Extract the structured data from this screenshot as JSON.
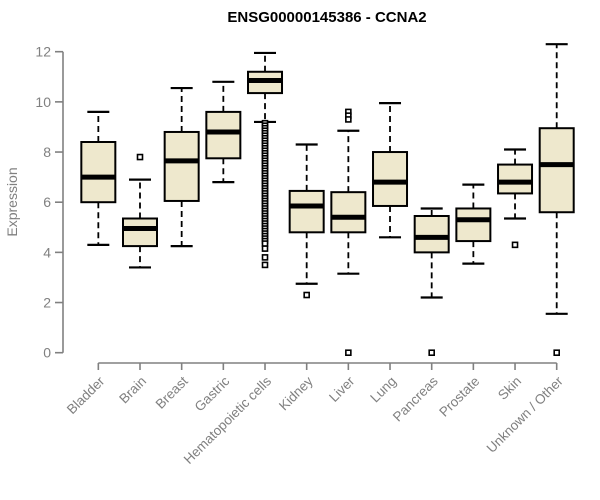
{
  "chart_data": {
    "type": "boxplot",
    "title": "ENSG00000145386 - CCNA2",
    "ylabel": "Expression",
    "xlabel": "",
    "ylim": [
      0,
      12
    ],
    "yticks": [
      "0",
      "2",
      "4",
      "6",
      "8",
      "10",
      "12"
    ],
    "grid": false,
    "legend": "none",
    "categories": [
      "Bladder",
      "Brain",
      "Breast",
      "Gastric",
      "Hematopoietic cells",
      "Kidney",
      "Liver",
      "Lung",
      "Pancreas",
      "Prostate",
      "Skin",
      "Unknown / Other"
    ],
    "boxes": [
      {
        "name": "Bladder",
        "low": 4.3,
        "q1": 6.0,
        "median": 7.0,
        "q3": 8.4,
        "high": 9.6,
        "outliers": []
      },
      {
        "name": "Brain",
        "low": 3.4,
        "q1": 4.25,
        "median": 4.95,
        "q3": 5.35,
        "high": 6.9,
        "outliers": [
          7.8
        ]
      },
      {
        "name": "Breast",
        "low": 4.25,
        "q1": 6.05,
        "median": 7.65,
        "q3": 8.8,
        "high": 10.55,
        "outliers": []
      },
      {
        "name": "Gastric",
        "low": 6.8,
        "q1": 7.75,
        "median": 8.8,
        "q3": 9.6,
        "high": 10.8,
        "outliers": []
      },
      {
        "name": "Hematopoietic cells",
        "low": 9.2,
        "q1": 10.35,
        "median": 10.85,
        "q3": 11.2,
        "high": 11.95,
        "outliers": [
          9.15,
          9.05,
          8.95,
          8.85,
          8.75,
          8.65,
          8.55,
          8.45,
          8.35,
          8.25,
          8.15,
          8.05,
          7.95,
          7.85,
          7.75,
          7.65,
          7.55,
          7.45,
          7.35,
          7.25,
          7.15,
          7.05,
          6.95,
          6.85,
          6.75,
          6.65,
          6.55,
          6.45,
          6.35,
          6.25,
          6.15,
          6.05,
          5.95,
          5.85,
          5.75,
          5.65,
          5.55,
          5.45,
          5.35,
          5.25,
          5.15,
          5.05,
          4.95,
          4.85,
          4.75,
          4.65,
          4.55,
          4.45,
          4.35,
          4.15,
          3.8,
          3.5
        ]
      },
      {
        "name": "Kidney",
        "low": 2.75,
        "q1": 4.8,
        "median": 5.85,
        "q3": 6.45,
        "high": 8.3,
        "outliers": [
          2.3
        ]
      },
      {
        "name": "Liver",
        "low": 3.15,
        "q1": 4.8,
        "median": 5.4,
        "q3": 6.4,
        "high": 8.85,
        "outliers": [
          9.6,
          9.45,
          9.3,
          0
        ]
      },
      {
        "name": "Lung",
        "low": 4.6,
        "q1": 5.85,
        "median": 6.8,
        "q3": 8.0,
        "high": 9.95,
        "outliers": []
      },
      {
        "name": "Pancreas",
        "low": 2.2,
        "q1": 4.0,
        "median": 4.6,
        "q3": 5.45,
        "high": 5.75,
        "outliers": [
          0
        ]
      },
      {
        "name": "Prostate",
        "low": 3.55,
        "q1": 4.45,
        "median": 5.3,
        "q3": 5.75,
        "high": 6.7,
        "outliers": []
      },
      {
        "name": "Skin",
        "low": 5.35,
        "q1": 6.35,
        "median": 6.8,
        "q3": 7.5,
        "high": 8.1,
        "outliers": [
          4.3
        ]
      },
      {
        "name": "Unknown / Other",
        "low": 1.55,
        "q1": 5.6,
        "median": 7.5,
        "q3": 8.95,
        "high": 12.3,
        "outliers": [
          0
        ]
      }
    ],
    "colors": {
      "box_fill": "#EEE8CD",
      "box_border": "#000000",
      "median": "#000000",
      "whisker": "#000000",
      "outlier": "#000000",
      "axis": "#808080",
      "labels": "#808080",
      "title": "#000000",
      "background": "#ffffff"
    }
  }
}
